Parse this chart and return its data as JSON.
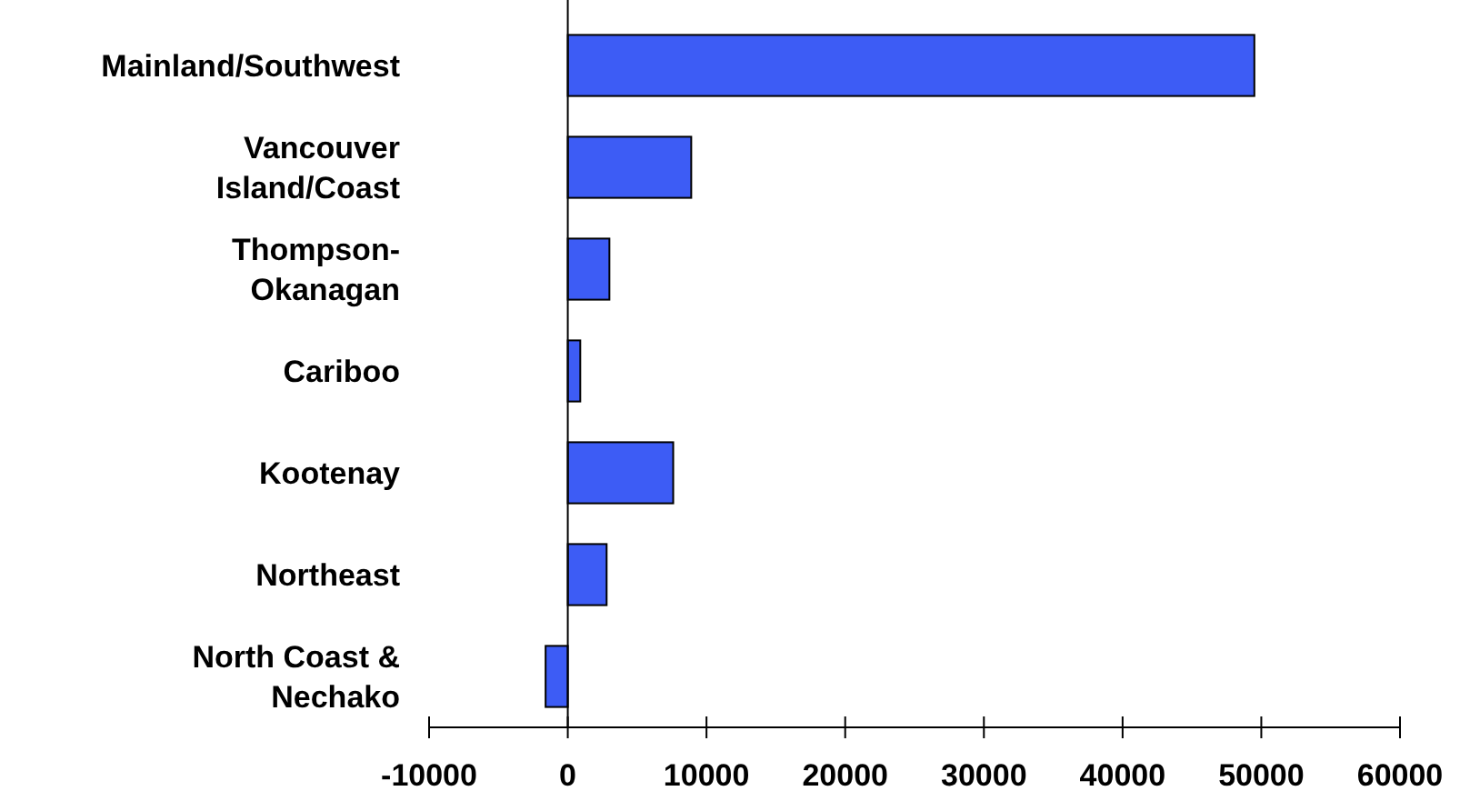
{
  "chart_data": {
    "type": "bar",
    "orientation": "horizontal",
    "categories": [
      "Mainland/Southwest",
      "Vancouver\nIsland/Coast",
      "Thompson-\nOkanagan",
      "Cariboo",
      "Kootenay",
      "Northeast",
      "North Coast &\nNechako"
    ],
    "values": [
      49500,
      8900,
      3000,
      900,
      7600,
      2800,
      -1600
    ],
    "color": "#3d5cf5",
    "xlim": [
      -10000,
      60000
    ],
    "xticks": [
      -10000,
      0,
      10000,
      20000,
      30000,
      40000,
      50000,
      60000
    ]
  }
}
